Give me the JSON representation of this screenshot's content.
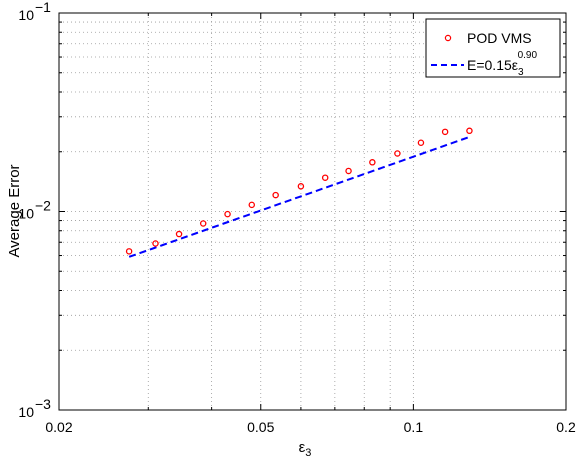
{
  "chart_data": {
    "type": "scatter",
    "xscale": "log",
    "yscale": "log",
    "xlim": [
      0.02,
      0.2
    ],
    "ylim": [
      0.001,
      0.1
    ],
    "grid": true,
    "legend_position": "top-right",
    "xlabel": "ε",
    "xlabel_sub": "3",
    "ylabel": "Average Error",
    "xticks": [
      0.02,
      0.05,
      0.1,
      0.2
    ],
    "xtick_labels": [
      "0.02",
      "0.05",
      "0.1",
      "0.2"
    ],
    "yticks": [
      0.001,
      0.01,
      0.1
    ],
    "ytick_labels": [
      {
        "base": "10",
        "exp": "−3"
      },
      {
        "base": "10",
        "exp": "−2"
      },
      {
        "base": "10",
        "exp": "−1"
      }
    ],
    "series": [
      {
        "name": "POD VMS",
        "kind": "markers",
        "color": "#ff0000",
        "x": [
          0.0275,
          0.031,
          0.0345,
          0.0385,
          0.043,
          0.048,
          0.0535,
          0.06,
          0.067,
          0.0745,
          0.083,
          0.093,
          0.1035,
          0.1155,
          0.129
        ],
        "y": [
          0.0063,
          0.0069,
          0.0077,
          0.0087,
          0.0097,
          0.0108,
          0.0121,
          0.0134,
          0.0148,
          0.016,
          0.0177,
          0.0196,
          0.0222,
          0.0252,
          0.0255
        ]
      },
      {
        "name": "E=0.15ε",
        "name_sub": "3",
        "name_sup": "0.90",
        "kind": "dashed-line",
        "color": "#0000ff",
        "coefficient": 0.15,
        "exponent": 0.9,
        "x_range": [
          0.0275,
          0.129
        ]
      }
    ]
  }
}
